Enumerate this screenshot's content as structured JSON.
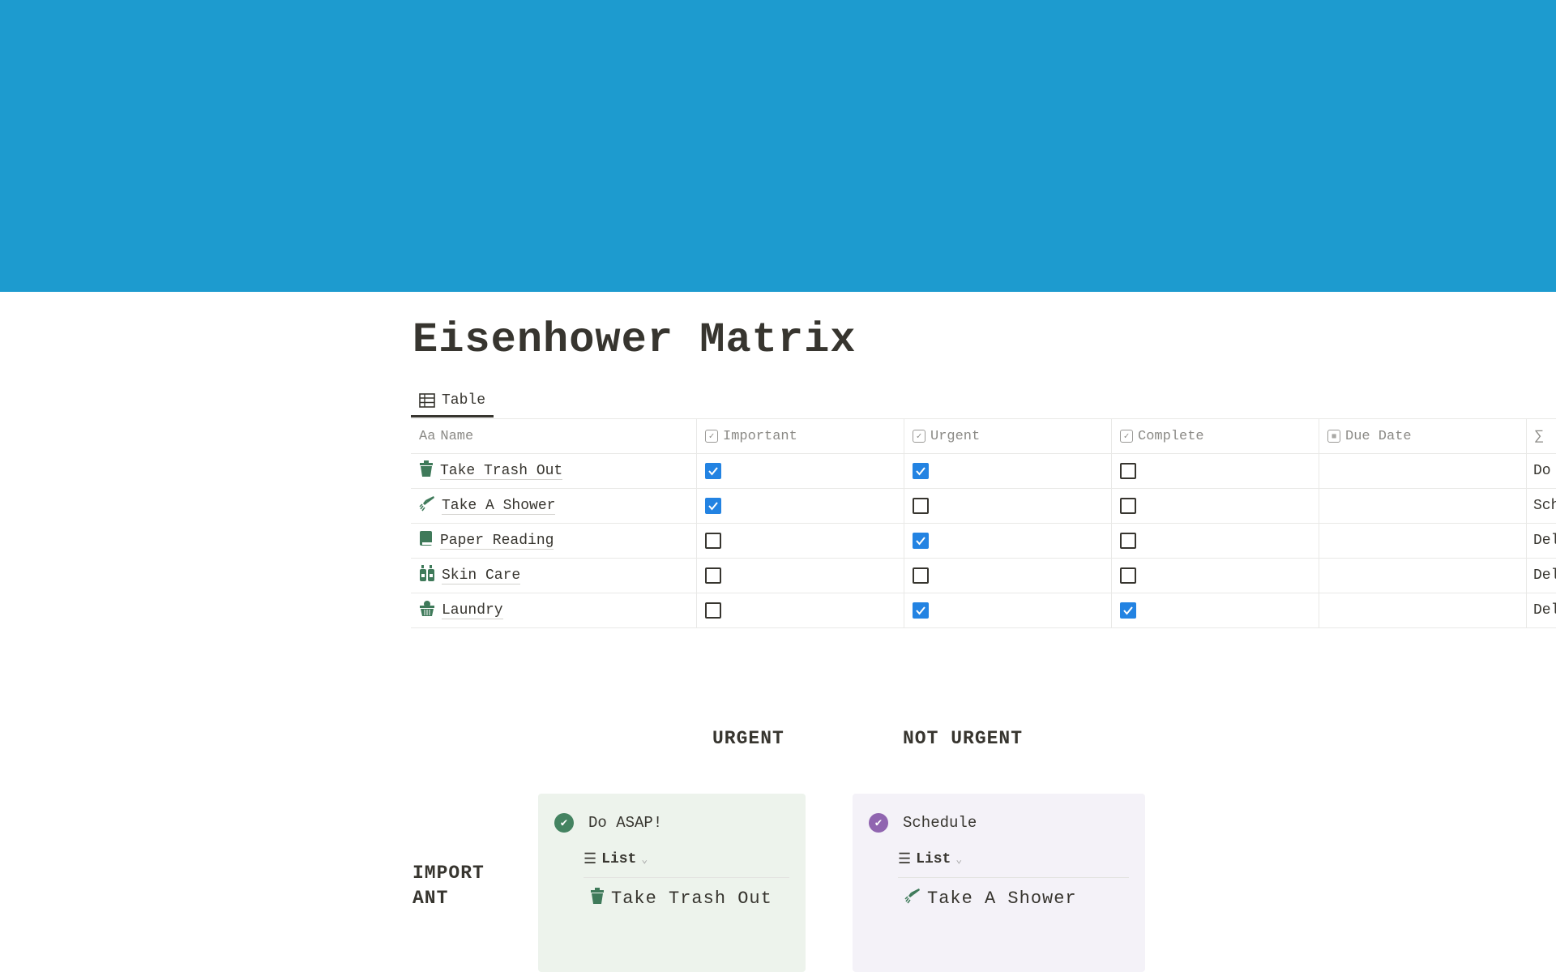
{
  "page": {
    "title": "Eisenhower Matrix",
    "banner_color": "#1d9bcf"
  },
  "view_tab": {
    "label": "Table",
    "icon": "table-icon"
  },
  "table": {
    "columns": [
      {
        "label": "Name",
        "icon": "Aa"
      },
      {
        "label": "Important",
        "icon": "checkbox-icon"
      },
      {
        "label": "Urgent",
        "icon": "checkbox-icon"
      },
      {
        "label": "Complete",
        "icon": "checkbox-icon"
      },
      {
        "label": "Due Date",
        "icon": "calendar-icon"
      },
      {
        "label": "",
        "icon": "∑"
      }
    ],
    "rows": [
      {
        "name": "Take Trash Out",
        "icon": "trash-icon",
        "important": true,
        "urgent": true,
        "complete": false,
        "due": "",
        "formula": "Do ASAP!"
      },
      {
        "name": "Take A Shower",
        "icon": "shower-icon",
        "important": true,
        "urgent": false,
        "complete": false,
        "due": "",
        "formula": "Schedule"
      },
      {
        "name": "Paper Reading",
        "icon": "book-icon",
        "important": false,
        "urgent": true,
        "complete": false,
        "due": "",
        "formula": "Delegate"
      },
      {
        "name": "Skin Care",
        "icon": "bottles-icon",
        "important": false,
        "urgent": false,
        "complete": false,
        "due": "",
        "formula": "Delete"
      },
      {
        "name": "Laundry",
        "icon": "laundry-basket-icon",
        "important": false,
        "urgent": true,
        "complete": true,
        "due": "",
        "formula": "Delegate"
      }
    ]
  },
  "matrix": {
    "col_labels": [
      "URGENT",
      "NOT URGENT"
    ],
    "row_labels": [
      "IMPORT\nANT"
    ],
    "cards": [
      {
        "title": "Do ASAP!",
        "color": "#448361",
        "bg": "#edf3ec",
        "view": "List",
        "items": [
          {
            "name": "Take Trash Out",
            "icon": "trash-icon"
          }
        ]
      },
      {
        "title": "Schedule",
        "color": "#9065b0",
        "bg": "#f4f2f8",
        "view": "List",
        "items": [
          {
            "name": "Take A Shower",
            "icon": "shower-icon"
          }
        ]
      }
    ]
  },
  "accent": "#2383e2"
}
